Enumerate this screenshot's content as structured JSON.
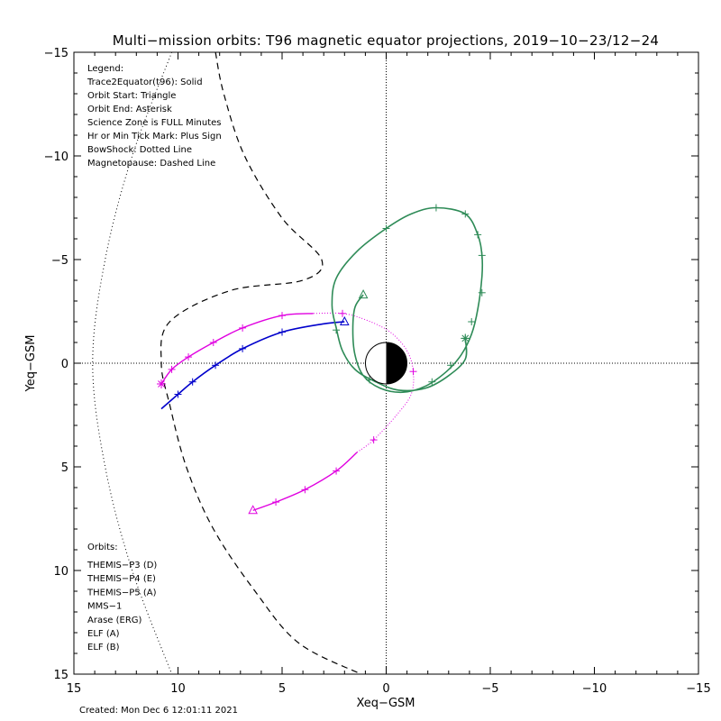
{
  "chart_data": {
    "type": "scatter",
    "title": "Multi−mission orbits: T96 magnetic equator projections, 2019−10−23/12−24",
    "xlabel": "Xeq−GSM",
    "ylabel": "Yeq−GSM",
    "xlim": [
      15,
      -15
    ],
    "ylim": [
      -15,
      15
    ],
    "x_ticks": [
      15,
      10,
      5,
      0,
      -5,
      -10,
      -15
    ],
    "x_tick_labels": [
      "15",
      "10",
      "5",
      "0",
      "−5",
      "−10",
      "−15"
    ],
    "y_ticks": [
      -15,
      -10,
      -5,
      0,
      5,
      10,
      15
    ],
    "y_tick_labels": [
      "−15",
      "−10",
      "−5",
      "0",
      "5",
      "10",
      "15"
    ],
    "footer": "Created: Mon Dec  6 12:01:11 2021",
    "legend_lines": [
      "Legend:",
      "Trace2Equator(t96): Solid",
      "Orbit Start: Triangle",
      "Orbit End: Asterisk",
      "Science Zone is FULL Minutes",
      "Hr or Min Tick Mark: Plus Sign",
      "BowShock: Dotted Line",
      "Magnetopause: Dashed Line"
    ],
    "orbits_title": "Orbits:",
    "orbit_entries": [
      {
        "label": "THEMIS−P3 (D)",
        "color": "#00e5e5"
      },
      {
        "label": "THEMIS−P4 (E)",
        "color": "#0000cc"
      },
      {
        "label": "THEMIS−P5 (A)",
        "color": "#e000e0"
      },
      {
        "label": "MMS−1",
        "color": "#000000"
      },
      {
        "label": "Arase (ERG)",
        "color": "#2e8b57"
      },
      {
        "label": "ELF (A)",
        "color": "#3c78d8"
      },
      {
        "label": "ELF (B)",
        "color": "#dd0000"
      }
    ],
    "bow_shock": [
      [
        10.3,
        -15
      ],
      [
        12.2,
        -10
      ],
      [
        13.5,
        -5
      ],
      [
        14.1,
        0
      ],
      [
        13.5,
        5
      ],
      [
        12.2,
        10
      ],
      [
        10.3,
        15
      ]
    ],
    "magnetopause": [
      [
        8.2,
        -15
      ],
      [
        7.8,
        -13
      ],
      [
        6.8,
        -10
      ],
      [
        5.0,
        -7
      ],
      [
        3.1,
        -5
      ],
      [
        4.0,
        -4
      ],
      [
        7.5,
        -3.5
      ],
      [
        10.4,
        -2
      ],
      [
        10.8,
        0
      ],
      [
        10.4,
        2
      ],
      [
        9.6,
        5
      ],
      [
        8.3,
        8
      ],
      [
        6.3,
        11
      ],
      [
        4.2,
        13.5
      ],
      [
        1.2,
        15
      ]
    ],
    "series": [
      {
        "name": "THEMIS−P4 (E)",
        "color": "#0000cc",
        "points": [
          [
            2.0,
            -2.0
          ],
          [
            3.0,
            -1.9
          ],
          [
            5.0,
            -1.5
          ],
          [
            6.9,
            -0.7
          ],
          [
            8.2,
            0.1
          ],
          [
            9.3,
            0.9
          ],
          [
            10.0,
            1.5
          ],
          [
            10.8,
            2.2
          ]
        ],
        "ticks": [
          [
            5.0,
            -1.5
          ],
          [
            6.9,
            -0.7
          ],
          [
            8.2,
            0.1
          ],
          [
            9.3,
            0.9
          ],
          [
            10.0,
            1.5
          ]
        ],
        "start": [
          2.0,
          -2.0
        ]
      },
      {
        "name": "THEMIS−P5 (A)",
        "color": "#e000e0",
        "points": [
          [
            6.4,
            7.1
          ],
          [
            5.3,
            6.7
          ],
          [
            3.9,
            6.1
          ],
          [
            2.4,
            5.2
          ],
          [
            1.4,
            4.3
          ],
          [
            0.6,
            3.7
          ],
          [
            -0.5,
            2.5
          ],
          [
            -1.2,
            1.5
          ],
          [
            -1.3,
            0.4
          ],
          [
            -1.0,
            -0.6
          ],
          [
            -0.2,
            -1.5
          ],
          [
            1.0,
            -2.1
          ],
          [
            2.1,
            -2.4
          ],
          [
            3.5,
            -2.4
          ],
          [
            5.0,
            -2.3
          ],
          [
            6.9,
            -1.7
          ],
          [
            8.3,
            -1.0
          ],
          [
            9.5,
            -0.3
          ],
          [
            10.3,
            0.3
          ],
          [
            10.8,
            1.0
          ]
        ],
        "dotted_from_index": 4,
        "dotted_to_index": 13,
        "ticks": [
          [
            5.3,
            6.7
          ],
          [
            3.9,
            6.1
          ],
          [
            2.4,
            5.2
          ],
          [
            0.6,
            3.7
          ],
          [
            -1.3,
            0.4
          ],
          [
            2.1,
            -2.4
          ],
          [
            5.0,
            -2.3
          ],
          [
            6.9,
            -1.7
          ],
          [
            8.3,
            -1.0
          ],
          [
            9.5,
            -0.3
          ],
          [
            10.3,
            0.3
          ]
        ],
        "start": [
          6.4,
          7.1
        ],
        "end": [
          10.8,
          1.0
        ]
      },
      {
        "name": "Arase (ERG)",
        "color": "#2e8b57",
        "points": [
          [
            1.1,
            -3.3
          ],
          [
            1.5,
            -2.7
          ],
          [
            1.6,
            -1.6
          ],
          [
            1.5,
            -0.4
          ],
          [
            1.1,
            0.6
          ],
          [
            0.3,
            1.2
          ],
          [
            -0.8,
            1.4
          ],
          [
            -1.9,
            1.1
          ],
          [
            -2.9,
            0.4
          ],
          [
            -3.6,
            -0.4
          ],
          [
            -4.1,
            -1.4
          ],
          [
            -4.4,
            -2.6
          ],
          [
            -4.6,
            -4.2
          ],
          [
            -4.6,
            -5.2
          ],
          [
            -4.4,
            -6.2
          ],
          [
            -3.8,
            -7.2
          ],
          [
            -2.4,
            -7.5
          ],
          [
            -1.2,
            -7.2
          ],
          [
            0.0,
            -6.5
          ],
          [
            1.4,
            -5.4
          ],
          [
            2.4,
            -4.1
          ],
          [
            2.6,
            -2.8
          ],
          [
            2.4,
            -1.7
          ],
          [
            2.1,
            -0.6
          ],
          [
            1.5,
            0.3
          ],
          [
            0.5,
            0.9
          ],
          [
            -0.6,
            1.3
          ],
          [
            -1.9,
            1.2
          ],
          [
            -3.0,
            0.6
          ],
          [
            -3.8,
            -0.2
          ],
          [
            -3.8,
            -1.2
          ]
        ],
        "ticks": [
          [
            -2.4,
            -7.5
          ],
          [
            -3.8,
            -7.2
          ],
          [
            -4.4,
            -6.2
          ],
          [
            -4.6,
            -5.2
          ],
          [
            -4.6,
            -3.4
          ],
          [
            -4.1,
            -2.0
          ],
          [
            -3.8,
            -1.2
          ],
          [
            -3.1,
            0.1
          ],
          [
            -2.2,
            0.9
          ],
          [
            0.0,
            -6.5
          ],
          [
            2.4,
            -1.6
          ],
          [
            0.8,
            0.8
          ]
        ],
        "start": [
          1.1,
          -3.3
        ],
        "end": [
          -3.8,
          -1.2
        ]
      }
    ],
    "earth": {
      "center": [
        0,
        0
      ],
      "radius": 1
    }
  }
}
